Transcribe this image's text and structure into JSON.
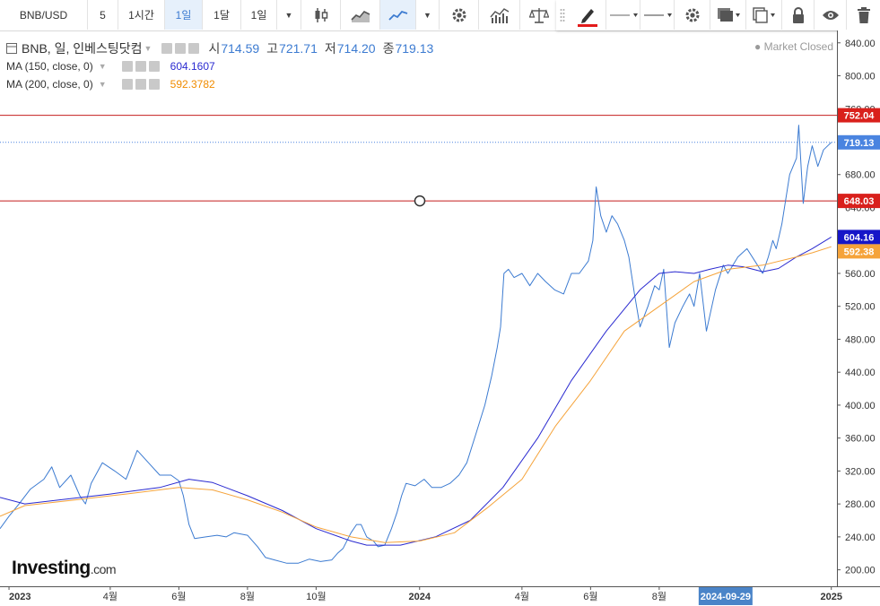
{
  "toolbar": {
    "symbol": "BNB/USD",
    "intervals": [
      "5",
      "1시간",
      "1일",
      "1달",
      "1일"
    ],
    "active_interval_index": 2,
    "icons": [
      "dropdown-caret-icon",
      "candlestick-icon",
      "area-chart-icon",
      "line-chart-icon",
      "dropdown-caret-icon",
      "settings-gear-icon",
      "indicators-icon",
      "compare-scale-icon",
      "drag-handle-icon",
      "pencil-icon",
      "line-style-icon",
      "line-width-icon",
      "settings-gear-icon",
      "layers-icon",
      "copy-icon",
      "lock-icon",
      "eye-icon",
      "trash-icon"
    ]
  },
  "legend": {
    "title": "BNB, 일, 인베스팅닷컴",
    "open_label": "시",
    "open": "714.59",
    "high_label": "고",
    "high": "721.71",
    "low_label": "저",
    "low": "714.20",
    "close_label": "종",
    "close": "719.13",
    "ma150_label": "MA (150, close, 0)",
    "ma150_value": "604.1607",
    "ma200_label": "MA (200, close, 0)",
    "ma200_value": "592.3782",
    "market_status": "Market Closed"
  },
  "branding": {
    "logo_main": "Investing",
    "logo_suffix": ".com"
  },
  "colors": {
    "price": "#3c7bd1",
    "ma150": "#2a2ad0",
    "ma200": "#f5a33a",
    "hline": "#c41e1e",
    "last_price": "#4a84e0"
  },
  "chart_data": {
    "type": "line",
    "title": "",
    "xlabel": "",
    "ylabel": "",
    "x_ticks": [
      "2023",
      "4월",
      "6월",
      "8월",
      "10월",
      "2024",
      "4월",
      "6월",
      "8월",
      "2024-09-29",
      "2025"
    ],
    "x_tick_dates": [
      "2023-01-01",
      "2023-04-01",
      "2023-06-01",
      "2023-08-01",
      "2023-10-01",
      "2024-01-01",
      "2024-04-01",
      "2024-06-01",
      "2024-08-01",
      "2024-09-29",
      "2025-01-01"
    ],
    "y_ticks": [
      "200.00",
      "240.00",
      "280.00",
      "320.00",
      "360.00",
      "400.00",
      "440.00",
      "480.00",
      "520.00",
      "560.00",
      "600.00",
      "640.00",
      "680.00",
      "720.00",
      "760.00",
      "800.00",
      "840.00"
    ],
    "ylim": [
      180,
      855
    ],
    "xlim": [
      "2022-12-24",
      "2025-01-06"
    ],
    "horizontal_lines": [
      {
        "value": 752.04,
        "label": "752.04"
      },
      {
        "value": 648.03,
        "label": "648.03"
      }
    ],
    "price_labels": [
      {
        "value": 719.13,
        "label": "719.13",
        "series": "BNB"
      },
      {
        "value": 604.16,
        "label": "604.16",
        "series": "MA 150"
      },
      {
        "value": 592.38,
        "label": "592.38",
        "series": "MA 200"
      }
    ],
    "series": [
      {
        "name": "BNB",
        "x": [
          "2022-12-24",
          "2023-01-01",
          "2023-01-10",
          "2023-01-20",
          "2023-02-01",
          "2023-02-08",
          "2023-02-15",
          "2023-02-25",
          "2023-03-05",
          "2023-03-10",
          "2023-03-15",
          "2023-03-25",
          "2023-04-05",
          "2023-04-15",
          "2023-04-25",
          "2023-05-05",
          "2023-05-15",
          "2023-05-25",
          "2023-06-01",
          "2023-06-05",
          "2023-06-10",
          "2023-06-15",
          "2023-06-25",
          "2023-07-05",
          "2023-07-13",
          "2023-07-20",
          "2023-08-01",
          "2023-08-10",
          "2023-08-17",
          "2023-08-25",
          "2023-09-05",
          "2023-09-15",
          "2023-09-25",
          "2023-10-05",
          "2023-10-15",
          "2023-10-20",
          "2023-10-25",
          "2023-11-01",
          "2023-11-06",
          "2023-11-10",
          "2023-11-15",
          "2023-11-21",
          "2023-11-25",
          "2023-12-01",
          "2023-12-07",
          "2023-12-12",
          "2023-12-16",
          "2023-12-20",
          "2023-12-28",
          "2024-01-05",
          "2024-01-12",
          "2024-01-20",
          "2024-01-28",
          "2024-02-05",
          "2024-02-12",
          "2024-02-20",
          "2024-02-28",
          "2024-03-05",
          "2024-03-10",
          "2024-03-13",
          "2024-03-16",
          "2024-03-20",
          "2024-03-25",
          "2024-04-01",
          "2024-04-08",
          "2024-04-15",
          "2024-04-22",
          "2024-04-30",
          "2024-05-08",
          "2024-05-15",
          "2024-05-22",
          "2024-05-30",
          "2024-06-03",
          "2024-06-06",
          "2024-06-10",
          "2024-06-15",
          "2024-06-20",
          "2024-06-25",
          "2024-07-01",
          "2024-07-05",
          "2024-07-10",
          "2024-07-15",
          "2024-07-22",
          "2024-07-28",
          "2024-08-01",
          "2024-08-05",
          "2024-08-10",
          "2024-08-15",
          "2024-08-22",
          "2024-08-28",
          "2024-09-01",
          "2024-09-06",
          "2024-09-12",
          "2024-09-20",
          "2024-09-27",
          "2024-10-01",
          "2024-10-10",
          "2024-10-18",
          "2024-10-25",
          "2024-11-01",
          "2024-11-06",
          "2024-11-10",
          "2024-11-13",
          "2024-11-18",
          "2024-11-25",
          "2024-12-01",
          "2024-12-03",
          "2024-12-07",
          "2024-12-11",
          "2024-12-15",
          "2024-12-20",
          "2024-12-25",
          "2025-01-01"
        ],
        "values": [
          250,
          265,
          280,
          298,
          310,
          325,
          300,
          315,
          290,
          280,
          305,
          330,
          320,
          310,
          345,
          330,
          315,
          315,
          308,
          290,
          255,
          238,
          240,
          242,
          240,
          245,
          242,
          228,
          215,
          212,
          208,
          208,
          213,
          210,
          212,
          220,
          226,
          245,
          255,
          255,
          240,
          235,
          228,
          230,
          250,
          270,
          290,
          305,
          302,
          310,
          300,
          300,
          305,
          315,
          330,
          365,
          400,
          435,
          470,
          495,
          560,
          565,
          555,
          560,
          545,
          560,
          550,
          540,
          535,
          560,
          560,
          575,
          600,
          665,
          630,
          610,
          630,
          620,
          600,
          580,
          535,
          495,
          520,
          545,
          540,
          565,
          470,
          500,
          520,
          535,
          520,
          560,
          490,
          540,
          570,
          560,
          580,
          590,
          575,
          560,
          580,
          600,
          590,
          620,
          680,
          700,
          740,
          645,
          690,
          715,
          690,
          710,
          719.13
        ]
      },
      {
        "name": "MA 150",
        "x": [
          "2022-12-24",
          "2023-01-15",
          "2023-02-15",
          "2023-04-01",
          "2023-05-15",
          "2023-06-10",
          "2023-07-01",
          "2023-08-01",
          "2023-09-01",
          "2023-10-01",
          "2023-11-01",
          "2023-11-15",
          "2023-12-15",
          "2024-01-15",
          "2024-02-15",
          "2024-03-15",
          "2024-04-15",
          "2024-05-15",
          "2024-06-15",
          "2024-07-15",
          "2024-08-01",
          "2024-08-15",
          "2024-09-01",
          "2024-09-15",
          "2024-10-01",
          "2024-10-15",
          "2024-11-01",
          "2024-11-15",
          "2024-12-01",
          "2024-12-15",
          "2025-01-01"
        ],
        "values": [
          288,
          280,
          285,
          292,
          300,
          310,
          306,
          290,
          272,
          250,
          235,
          230,
          230,
          240,
          260,
          300,
          360,
          430,
          490,
          540,
          560,
          562,
          560,
          565,
          570,
          568,
          562,
          566,
          580,
          590,
          604.16
        ]
      },
      {
        "name": "MA 200",
        "x": [
          "2022-12-24",
          "2023-01-15",
          "2023-03-01",
          "2023-04-15",
          "2023-06-01",
          "2023-07-01",
          "2023-08-01",
          "2023-09-01",
          "2023-10-01",
          "2023-11-01",
          "2023-12-01",
          "2024-01-01",
          "2024-02-01",
          "2024-03-01",
          "2024-04-01",
          "2024-05-01",
          "2024-06-01",
          "2024-07-01",
          "2024-08-01",
          "2024-09-01",
          "2024-10-01",
          "2024-11-01",
          "2024-12-01",
          "2024-12-15",
          "2025-01-01"
        ],
        "values": [
          265,
          278,
          285,
          292,
          300,
          297,
          285,
          270,
          252,
          240,
          233,
          235,
          245,
          275,
          310,
          375,
          430,
          490,
          520,
          550,
          565,
          570,
          580,
          585,
          592.38
        ]
      }
    ]
  }
}
